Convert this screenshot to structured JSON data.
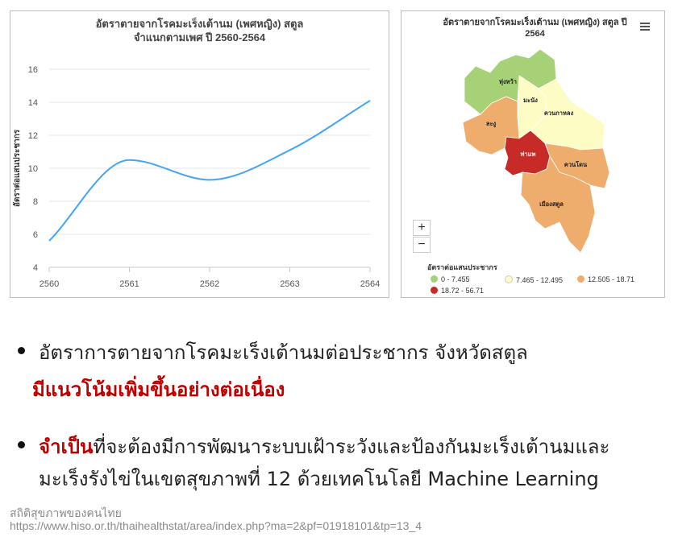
{
  "chart_data": [
    {
      "type": "line",
      "title": "อัตราตายจากโรคมะเร็งเต้านม (เพศหญิง) สตูล",
      "subtitle": "จำแนกตามเพศ ปี 2560-2564",
      "ylabel": "อัตราต่อแสนประชากร",
      "xlabel": "",
      "x": [
        "2560",
        "2561",
        "2562",
        "2563",
        "2564"
      ],
      "ylim": [
        4,
        16
      ],
      "yticks": [
        "4",
        "6",
        "8",
        "10",
        "12",
        "14",
        "16"
      ],
      "grid": true,
      "series": [
        {
          "values": [
            5.6,
            10.5,
            9.3,
            11.1,
            14.1
          ],
          "color": "#42a5f5"
        }
      ]
    },
    {
      "type": "choropleth-map",
      "title": "อัตราตายจากโรคมะเร็งเต้านม (เพศหญิง) สตูล ปี 2564",
      "legend_title": "อัตราต่อแสนประชากร",
      "legend": [
        {
          "label": "0 - 7.455",
          "color": "#a6d177"
        },
        {
          "label": "7.465 - 12.495",
          "color": "#fdfcc4"
        },
        {
          "label": "12.505 - 18.71",
          "color": "#efad6d"
        },
        {
          "label": "18.72 - 56.71",
          "color": "#c62b27"
        }
      ],
      "districts": [
        {
          "name": "ทุ่งหว้า",
          "color": "#a6d177"
        },
        {
          "name": "มะนัง",
          "color": "#fdfcc4"
        },
        {
          "name": "ควนกาหลง",
          "color": "#fdfcc4"
        },
        {
          "name": "ละงู",
          "color": "#efad6d"
        },
        {
          "name": "ท่าแพ",
          "color": "#c62b27"
        },
        {
          "name": "ควนโดน",
          "color": "#efad6d"
        },
        {
          "name": "เมืองสตูล",
          "color": "#efad6d"
        }
      ],
      "zoom_in": "+",
      "zoom_out": "−"
    }
  ],
  "bullets": [
    {
      "line1": "อัตราการตายจากโรคมะเร็งเต้านมต่อประชากร จังหวัดสตูล",
      "line2": "มีแนวโน้มเพิ่มขึ้นอย่างต่อเนื่อง"
    },
    {
      "line1_em": "จำเป็น",
      "line1_rest": "ที่จะต้องมีการพัฒนาระบบเฝ้าระวังและป้องกันมะเร็งเต้านมและ",
      "line2": "มะเร็งรังไข่ในเขตสุขภาพที่ 12 ด้วยเทคโนโลยี Machine Learning"
    }
  ],
  "footer": {
    "source": "สถิติสุขภาพของคนไทย",
    "url": "https://www.hiso.or.th/thaihealthstat/area/index.php?ma=2&pf=01918101&tp=13_4"
  }
}
